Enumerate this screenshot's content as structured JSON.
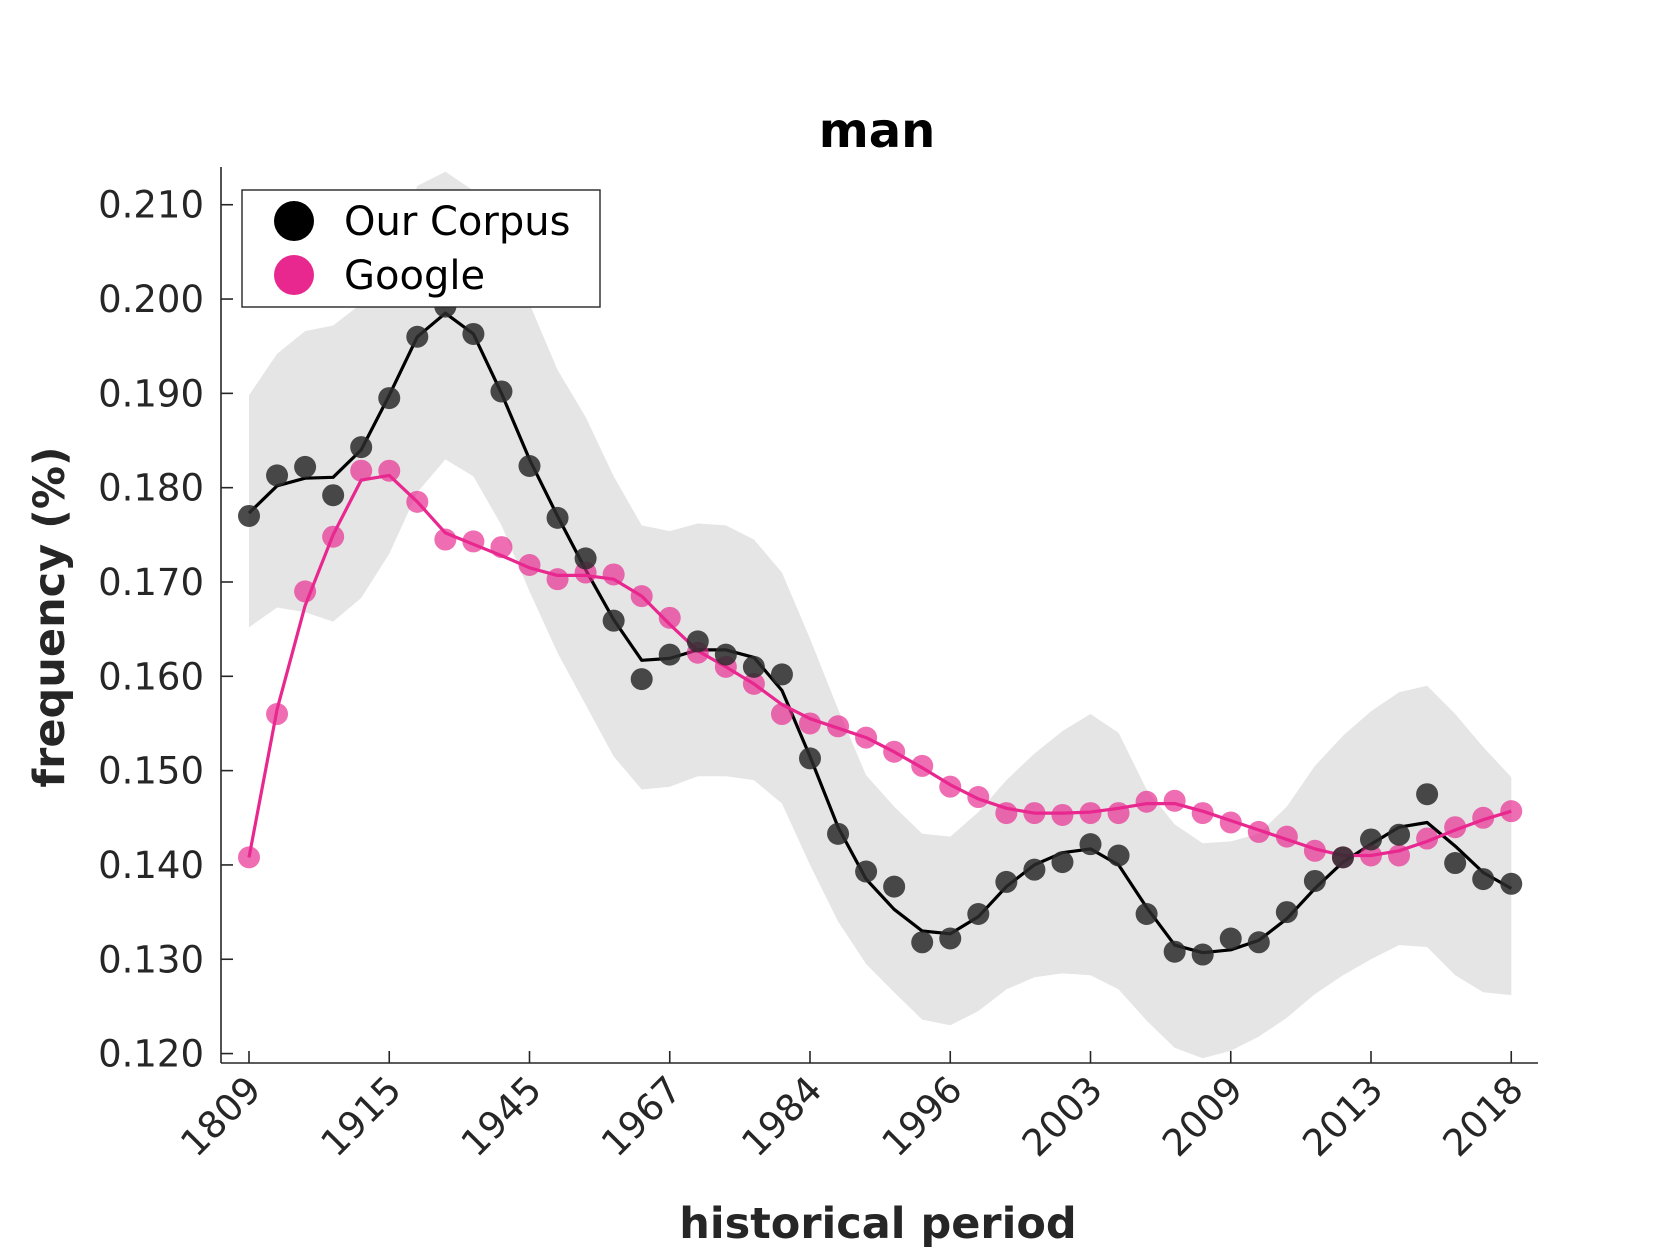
{
  "chart_data": {
    "type": "line",
    "title": "man",
    "xlabel": "historical period",
    "ylabel": "frequency (%)",
    "x_tick_labels": [
      "1809",
      "1915",
      "1945",
      "1967",
      "1984",
      "1996",
      "2003",
      "2009",
      "2013",
      "2018"
    ],
    "x_tick_index": [
      0,
      5,
      10,
      15,
      20,
      25,
      30,
      35,
      40,
      45
    ],
    "y_ticks": [
      "0.120",
      "0.130",
      "0.140",
      "0.150",
      "0.160",
      "0.170",
      "0.180",
      "0.190",
      "0.200",
      "0.210"
    ],
    "ylim": [
      0.119,
      0.214
    ],
    "legend": {
      "position": "top-left",
      "entries": [
        "Our Corpus",
        "Google"
      ]
    },
    "grid": false,
    "colors": {
      "corpus": "#2b2b2b",
      "google": "#e8288f",
      "band": "#e5e5e5"
    },
    "series": [
      {
        "name": "Our Corpus",
        "points": [
          0.177,
          0.1813,
          0.1822,
          0.1792,
          0.1843,
          0.1895,
          0.196,
          0.1992,
          0.1963,
          0.1902,
          0.1823,
          0.1768,
          0.1725,
          0.1659,
          0.1597,
          0.1623,
          0.1637,
          0.1623,
          0.161,
          0.1602,
          0.1513,
          0.1433,
          0.1393,
          0.1377,
          0.1318,
          0.1322,
          0.1348,
          0.1382,
          0.1395,
          0.1403,
          0.1422,
          0.141,
          0.1348,
          0.1308,
          0.1305,
          0.1322,
          0.1318,
          0.135,
          0.1383,
          0.1408,
          0.1427,
          0.1432,
          0.1475,
          0.1402,
          0.1385,
          0.138
        ],
        "smooth": [
          0.1773,
          0.1802,
          0.181,
          0.1811,
          0.184,
          0.1898,
          0.196,
          0.1985,
          0.1963,
          0.19,
          0.183,
          0.177,
          0.1713,
          0.166,
          0.1617,
          0.1619,
          0.1628,
          0.1628,
          0.162,
          0.1585,
          0.1515,
          0.144,
          0.1385,
          0.1353,
          0.133,
          0.1327,
          0.1345,
          0.1377,
          0.14,
          0.1413,
          0.1417,
          0.14,
          0.1355,
          0.1315,
          0.1307,
          0.131,
          0.132,
          0.1343,
          0.1375,
          0.1403,
          0.1422,
          0.144,
          0.1445,
          0.142,
          0.1392,
          0.1375
        ],
        "band_upper": [
          0.1898,
          0.1942,
          0.1966,
          0.1972,
          0.1995,
          0.2035,
          0.212,
          0.2135,
          0.2115,
          0.204,
          0.1995,
          0.1925,
          0.1875,
          0.1812,
          0.176,
          0.1754,
          0.1762,
          0.176,
          0.1745,
          0.171,
          0.164,
          0.1565,
          0.1495,
          0.1462,
          0.1433,
          0.143,
          0.1456,
          0.149,
          0.1518,
          0.1542,
          0.156,
          0.154,
          0.148,
          0.1443,
          0.1423,
          0.1425,
          0.1433,
          0.1462,
          0.1505,
          0.1537,
          0.1563,
          0.1583,
          0.159,
          0.156,
          0.1525,
          0.1493
        ],
        "band_lower": [
          0.1652,
          0.1673,
          0.1668,
          0.1658,
          0.1683,
          0.173,
          0.1795,
          0.183,
          0.1812,
          0.176,
          0.169,
          0.1625,
          0.157,
          0.1515,
          0.148,
          0.1483,
          0.1494,
          0.1494,
          0.149,
          0.1465,
          0.14,
          0.134,
          0.1295,
          0.1265,
          0.1236,
          0.123,
          0.1245,
          0.1268,
          0.1281,
          0.1285,
          0.1283,
          0.1268,
          0.1235,
          0.1206,
          0.1195,
          0.1203,
          0.1218,
          0.1238,
          0.1263,
          0.1283,
          0.13,
          0.1315,
          0.1313,
          0.1283,
          0.1265,
          0.1262
        ]
      },
      {
        "name": "Google",
        "points": [
          0.1408,
          0.156,
          0.169,
          0.1748,
          0.1818,
          0.1818,
          0.1785,
          0.1745,
          0.1743,
          0.1737,
          0.1718,
          0.1703,
          0.171,
          0.1708,
          0.1685,
          0.1662,
          0.1625,
          0.161,
          0.1592,
          0.156,
          0.155,
          0.1547,
          0.1535,
          0.152,
          0.1505,
          0.1483,
          0.1472,
          0.1455,
          0.1455,
          0.1453,
          0.1455,
          0.1455,
          0.1467,
          0.1468,
          0.1455,
          0.1445,
          0.1435,
          0.143,
          0.1415,
          0.1408,
          0.141,
          0.141,
          0.1428,
          0.144,
          0.145,
          0.1457
        ],
        "smooth": [
          0.1408,
          0.1565,
          0.1675,
          0.175,
          0.1808,
          0.1813,
          0.1785,
          0.1752,
          0.174,
          0.1728,
          0.1715,
          0.1707,
          0.1707,
          0.1703,
          0.1685,
          0.1655,
          0.1627,
          0.161,
          0.1592,
          0.157,
          0.1555,
          0.1545,
          0.1535,
          0.152,
          0.1503,
          0.1485,
          0.147,
          0.146,
          0.1455,
          0.1455,
          0.1456,
          0.146,
          0.1465,
          0.1465,
          0.1457,
          0.1447,
          0.1437,
          0.1427,
          0.1417,
          0.141,
          0.141,
          0.1415,
          0.1425,
          0.1437,
          0.1448,
          0.1457
        ]
      }
    ]
  }
}
